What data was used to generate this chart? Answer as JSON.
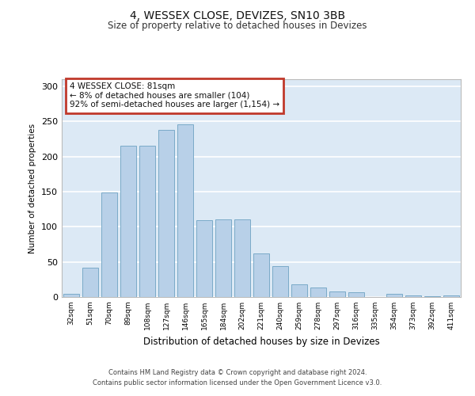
{
  "title": "4, WESSEX CLOSE, DEVIZES, SN10 3BB",
  "subtitle": "Size of property relative to detached houses in Devizes",
  "xlabel": "Distribution of detached houses by size in Devizes",
  "ylabel": "Number of detached properties",
  "categories": [
    "32sqm",
    "51sqm",
    "70sqm",
    "89sqm",
    "108sqm",
    "127sqm",
    "146sqm",
    "165sqm",
    "184sqm",
    "202sqm",
    "221sqm",
    "240sqm",
    "259sqm",
    "278sqm",
    "297sqm",
    "316sqm",
    "335sqm",
    "354sqm",
    "373sqm",
    "392sqm",
    "411sqm"
  ],
  "values": [
    4,
    42,
    149,
    215,
    215,
    238,
    246,
    109,
    110,
    110,
    62,
    44,
    18,
    13,
    8,
    7,
    0,
    4,
    2,
    1,
    2
  ],
  "bar_color": "#b8d0e8",
  "bar_edgecolor": "#7aaac8",
  "annotation_box_text": "4 WESSEX CLOSE: 81sqm\n← 8% of detached houses are smaller (104)\n92% of semi-detached houses are larger (1,154) →",
  "annotation_box_color": "#c0392b",
  "ylim": [
    0,
    310
  ],
  "yticks": [
    0,
    50,
    100,
    150,
    200,
    250,
    300
  ],
  "footer_line1": "Contains HM Land Registry data © Crown copyright and database right 2024.",
  "footer_line2": "Contains public sector information licensed under the Open Government Licence v3.0.",
  "plot_bg_color": "#dce9f5",
  "fig_bg_color": "#ffffff"
}
